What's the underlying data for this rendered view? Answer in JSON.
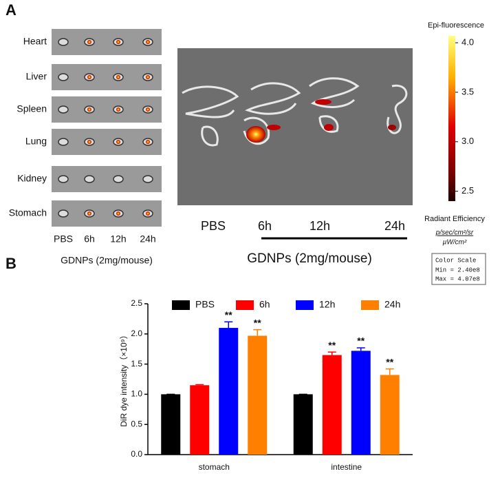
{
  "panel_a": {
    "label": "A",
    "organs": [
      "Heart",
      "Liver",
      "Spleen",
      "Lung",
      "Kidney",
      "Stomach"
    ],
    "organ_groups": [
      "PBS",
      "6h",
      "12h",
      "24h"
    ],
    "organ_caption": "GDNPs (2mg/mouse)",
    "image_groups": [
      "PBS",
      "6h",
      "12h",
      "24h"
    ],
    "image_caption": "GDNPs (2mg/mouse)",
    "colorbar": {
      "title": "Epi-fluorescence",
      "lim": [
        2.4,
        4.07
      ],
      "ticks": [
        {
          "value": 4,
          "label": "4.0"
        },
        {
          "value": 3.5,
          "label": "3.5"
        },
        {
          "value": 3,
          "label": "3.0"
        },
        {
          "value": 2.5,
          "label": "2.5"
        }
      ],
      "unit_title": "Radiant Efficiency",
      "unit_numerator": "p/sec/cm²/sr",
      "unit_denominator": "µW/cm²",
      "scale_title": "Color Scale",
      "scale_min": "Min = 2.40e8",
      "scale_max": "Max = 4.07e8"
    }
  },
  "chart_data": {
    "type": "bar",
    "label": "B",
    "y_label": "DiR dye intensity（×10⁹）",
    "categories": [
      "stomach",
      "intestine"
    ],
    "series": [
      {
        "name": "PBS",
        "color": "#000000",
        "values": [
          1.0,
          1.0
        ],
        "errors": [
          0,
          0
        ],
        "annotations": [
          null,
          null
        ]
      },
      {
        "name": "6h",
        "color": "#ff0000",
        "values": [
          1.15,
          1.65
        ],
        "errors": [
          0.01,
          0.05
        ],
        "annotations": [
          null,
          "**"
        ]
      },
      {
        "name": "12h",
        "color": "#0000ff",
        "values": [
          2.1,
          1.72
        ],
        "errors": [
          0.1,
          0.05
        ],
        "annotations": [
          "**",
          "**"
        ]
      },
      {
        "name": "24h",
        "color": "#ff8000",
        "values": [
          1.97,
          1.32
        ],
        "errors": [
          0.1,
          0.1
        ],
        "annotations": [
          "**",
          "**"
        ]
      }
    ],
    "ylim": [
      0,
      2.5
    ],
    "yticks": [
      {
        "value": 0,
        "label": "0.0"
      },
      {
        "value": 0.5,
        "label": "0.5"
      },
      {
        "value": 1,
        "label": "1.0"
      },
      {
        "value": 1.5,
        "label": "1.5"
      },
      {
        "value": 2,
        "label": "2.0"
      },
      {
        "value": 2.5,
        "label": "2.5"
      }
    ]
  }
}
